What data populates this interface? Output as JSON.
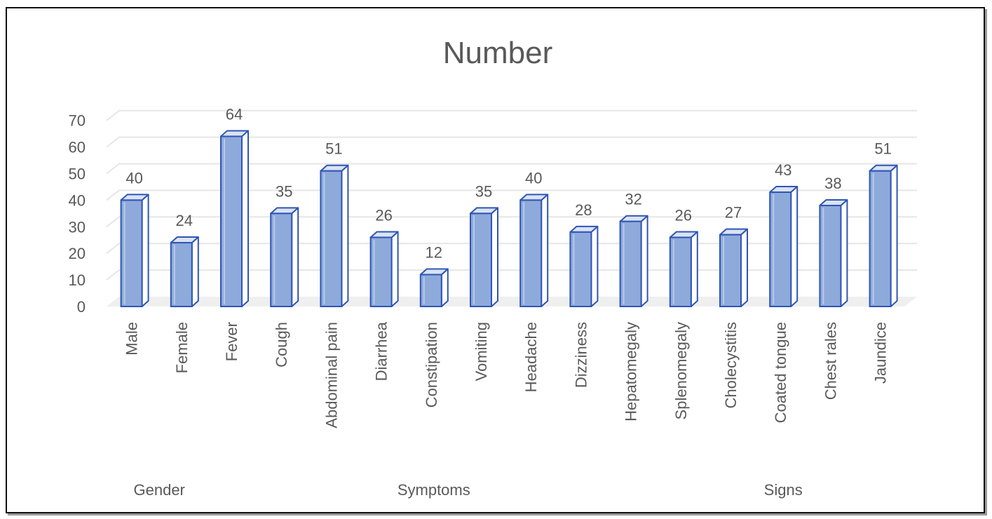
{
  "chart_data": {
    "type": "bar",
    "title": "Number",
    "categories": [
      "Male",
      "Female",
      "Fever",
      "Cough",
      "Abdominal pain",
      "Diarrhea",
      "Constipation",
      "Vomiting",
      "Headache",
      "Dizziness",
      "Hepatomegaly",
      "Splenomegaly",
      "Cholecystitis",
      "Coated tongue",
      "Chest rales",
      "Jaundice"
    ],
    "values": [
      40,
      24,
      64,
      35,
      51,
      26,
      12,
      35,
      40,
      28,
      32,
      26,
      27,
      43,
      38,
      51
    ],
    "groups": [
      {
        "name": "Gender",
        "start": 0,
        "end": 1
      },
      {
        "name": "Symptoms",
        "start": 2,
        "end": 10
      },
      {
        "name": "Signs",
        "start": 11,
        "end": 15
      }
    ],
    "yticks": [
      "0",
      "10",
      "20",
      "30",
      "40",
      "50",
      "60",
      "70"
    ],
    "ylim": [
      0,
      70
    ],
    "grid": true,
    "legend": "none",
    "bar_style": "3d-column",
    "colors": {
      "bar_front": "#8eaadb",
      "bar_side": "#ffffff",
      "bar_top": "#dae3f3",
      "bar_edge": "#2f55b4",
      "text": "#595959",
      "grid": "#e6e6e6",
      "floor": "#efefef"
    }
  }
}
